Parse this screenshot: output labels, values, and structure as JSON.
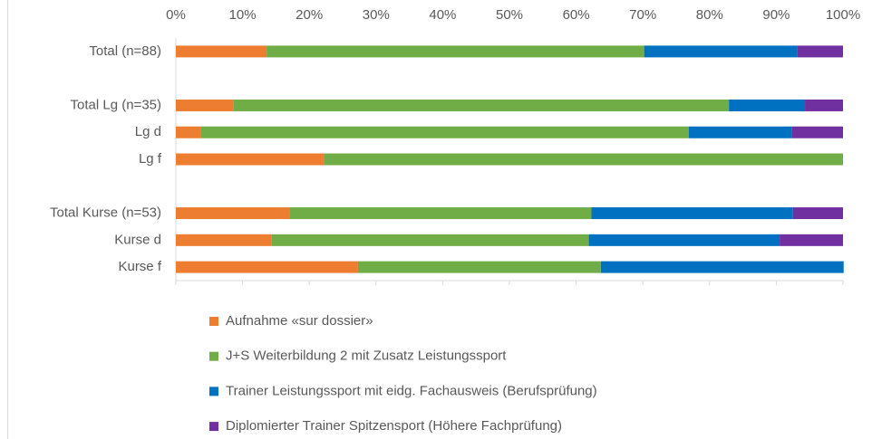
{
  "chart_data": {
    "type": "stacked-barh",
    "categories": [
      "Total (n=88)",
      null,
      "Total Lg (n=35)",
      "Lg d",
      "Lg f",
      null,
      "Total Kurse (n=53)",
      "Kurse d",
      "Kurse f"
    ],
    "series": [
      {
        "name": "Aufnahme «sur dossier»",
        "color": "#ed7d31",
        "values": [
          13.6,
          null,
          8.6,
          3.8,
          22.2,
          null,
          17.0,
          14.3,
          27.3
        ]
      },
      {
        "name": "J+S Weiterbildung 2 mit Zusatz Leistungssport",
        "color": "#70ad47",
        "values": [
          56.6,
          null,
          74.3,
          73.1,
          77.8,
          null,
          45.3,
          47.6,
          36.4
        ]
      },
      {
        "name": "Trainer Leistungssport mit eidg. Fachausweis (Berufsprüfung)",
        "color": "#0070c0",
        "values": [
          22.9,
          null,
          11.4,
          15.4,
          0,
          null,
          30.2,
          28.6,
          36.4
        ]
      },
      {
        "name": "Diplomierter Trainer Spitzensport (Höhere Fachprüfung)",
        "color": "#7030a0",
        "values": [
          6.9,
          null,
          5.7,
          7.7,
          0,
          null,
          7.5,
          9.5,
          0
        ]
      }
    ],
    "xlim": [
      0,
      100
    ],
    "xticks": [
      {
        "value": 0,
        "label": "0%"
      },
      {
        "value": 10,
        "label": "10%"
      },
      {
        "value": 20,
        "label": "20%"
      },
      {
        "value": 30,
        "label": "30%"
      },
      {
        "value": 40,
        "label": "40%"
      },
      {
        "value": 50,
        "label": "50%"
      },
      {
        "value": 60,
        "label": "60%"
      },
      {
        "value": 70,
        "label": "70%"
      },
      {
        "value": 80,
        "label": "80%"
      },
      {
        "value": 90,
        "label": "90%"
      },
      {
        "value": 100,
        "label": "100%"
      }
    ],
    "legend": "bottom"
  }
}
